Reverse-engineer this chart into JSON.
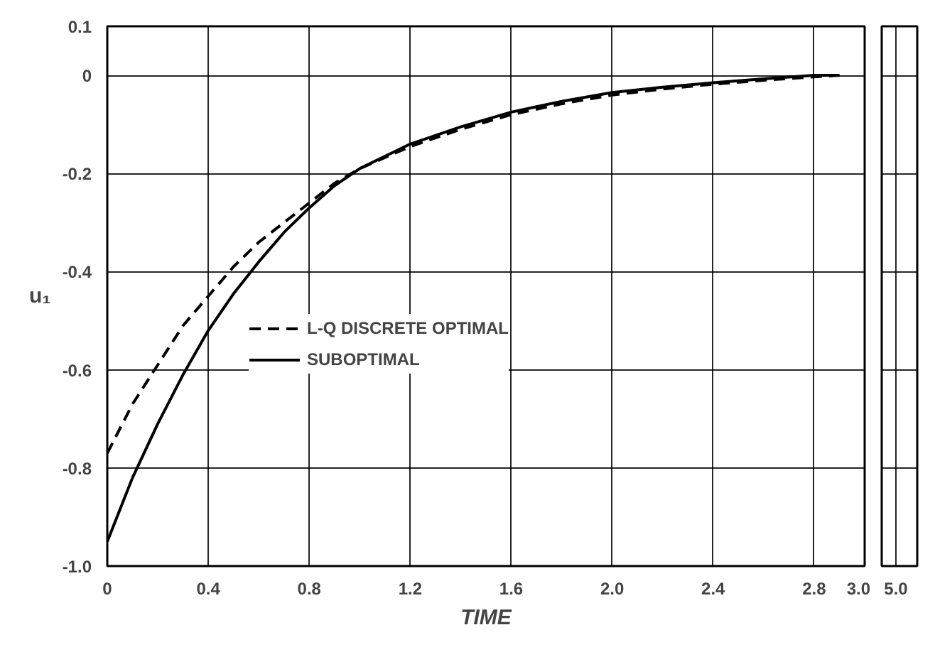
{
  "chart_data": [
    {
      "type": "line",
      "xlabel": "TIME",
      "ylabel": "u₁",
      "xlim": [
        0,
        3.0
      ],
      "ylim": [
        -1.0,
        0.1
      ],
      "xticks": [
        0,
        0.4,
        0.8,
        1.2,
        1.6,
        {
          "value": 2.0,
          "label": "2.0"
        },
        2.4,
        2.8,
        {
          "value": 3.0,
          "label": "3.0"
        }
      ],
      "yticks": [
        0.1,
        0,
        -0.2,
        -0.4,
        -0.6,
        -0.8,
        {
          "value": -1.0,
          "label": "-1.0"
        }
      ],
      "grid": true,
      "legend": "left",
      "series": [
        {
          "name": "L-Q DISCRETE OPTIMAL",
          "color": "#000000",
          "line_style": "dashed",
          "x": [
            0,
            0.1,
            0.2,
            0.3,
            0.4,
            0.5,
            0.6,
            0.7,
            0.8,
            0.9,
            1.0,
            1.2,
            1.4,
            1.6,
            1.8,
            2.0,
            2.2,
            2.4,
            2.6,
            2.8,
            2.9
          ],
          "values": [
            -0.77,
            -0.67,
            -0.59,
            -0.51,
            -0.45,
            -0.39,
            -0.34,
            -0.3,
            -0.26,
            -0.22,
            -0.19,
            -0.145,
            -0.11,
            -0.08,
            -0.058,
            -0.04,
            -0.028,
            -0.018,
            -0.01,
            -0.003,
            0
          ]
        },
        {
          "name": "SUBOPTIMAL",
          "color": "#000000",
          "line_style": "solid",
          "x": [
            0,
            0.1,
            0.2,
            0.3,
            0.4,
            0.5,
            0.6,
            0.7,
            0.8,
            0.9,
            1.0,
            1.2,
            1.4,
            1.6,
            1.8,
            2.0,
            2.2,
            2.4,
            2.6,
            2.8,
            2.9
          ],
          "values": [
            -0.95,
            -0.82,
            -0.71,
            -0.61,
            -0.52,
            -0.445,
            -0.38,
            -0.32,
            -0.27,
            -0.225,
            -0.19,
            -0.14,
            -0.105,
            -0.075,
            -0.053,
            -0.035,
            -0.024,
            -0.015,
            -0.007,
            0,
            0
          ]
        }
      ]
    },
    {
      "type": "other",
      "annotations": [
        "5.0"
      ]
    }
  ]
}
